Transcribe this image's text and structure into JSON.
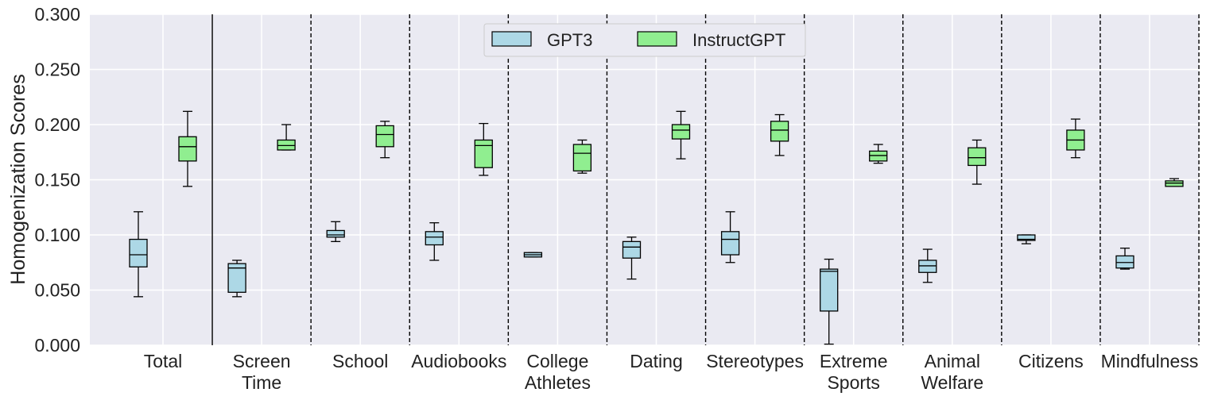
{
  "chart_data": {
    "type": "box",
    "title": "",
    "xlabel": "",
    "ylabel": "Homogenization Scores",
    "ylim": [
      0,
      0.3
    ],
    "yticks": [
      0,
      0.05,
      0.1,
      0.15,
      0.2,
      0.25,
      0.3
    ],
    "ytick_labels": [
      "0.000",
      "0.050",
      "0.100",
      "0.150",
      "0.200",
      "0.250",
      "0.300"
    ],
    "grid": true,
    "legend_position": "top-center",
    "categories": [
      [
        "Total"
      ],
      [
        "Screen",
        "Time"
      ],
      [
        "School"
      ],
      [
        "Audiobooks"
      ],
      [
        "College",
        "Athletes"
      ],
      [
        "Dating"
      ],
      [
        "Stereotypes"
      ],
      [
        "Extreme",
        "Sports"
      ],
      [
        "Animal",
        "Welfare"
      ],
      [
        "Citizens"
      ],
      [
        "Mindfulness"
      ]
    ],
    "series": [
      {
        "name": "GPT3",
        "color": "#add8e6",
        "boxes": [
          {
            "whislo": 0.044,
            "q1": 0.071,
            "med": 0.082,
            "q3": 0.096,
            "whishi": 0.121
          },
          {
            "whislo": 0.044,
            "q1": 0.048,
            "med": 0.07,
            "q3": 0.074,
            "whishi": 0.077
          },
          {
            "whislo": 0.094,
            "q1": 0.098,
            "med": 0.1,
            "q3": 0.104,
            "whishi": 0.112
          },
          {
            "whislo": 0.077,
            "q1": 0.091,
            "med": 0.098,
            "q3": 0.103,
            "whishi": 0.111
          },
          {
            "whislo": 0.08,
            "q1": 0.08,
            "med": 0.082,
            "q3": 0.084,
            "whishi": 0.084
          },
          {
            "whislo": 0.06,
            "q1": 0.079,
            "med": 0.089,
            "q3": 0.094,
            "whishi": 0.098
          },
          {
            "whislo": 0.075,
            "q1": 0.082,
            "med": 0.096,
            "q3": 0.103,
            "whishi": 0.121
          },
          {
            "whislo": 0.001,
            "q1": 0.031,
            "med": 0.067,
            "q3": 0.069,
            "whishi": 0.078
          },
          {
            "whislo": 0.057,
            "q1": 0.066,
            "med": 0.072,
            "q3": 0.077,
            "whishi": 0.087
          },
          {
            "whislo": 0.092,
            "q1": 0.095,
            "med": 0.096,
            "q3": 0.1,
            "whishi": 0.1
          },
          {
            "whislo": 0.069,
            "q1": 0.07,
            "med": 0.075,
            "q3": 0.081,
            "whishi": 0.088
          }
        ]
      },
      {
        "name": "InstructGPT",
        "color": "#90ee90",
        "boxes": [
          {
            "whislo": 0.144,
            "q1": 0.167,
            "med": 0.18,
            "q3": 0.189,
            "whishi": 0.212
          },
          {
            "whislo": 0.177,
            "q1": 0.177,
            "med": 0.181,
            "q3": 0.186,
            "whishi": 0.2
          },
          {
            "whislo": 0.17,
            "q1": 0.18,
            "med": 0.191,
            "q3": 0.199,
            "whishi": 0.203
          },
          {
            "whislo": 0.154,
            "q1": 0.161,
            "med": 0.181,
            "q3": 0.186,
            "whishi": 0.201
          },
          {
            "whislo": 0.156,
            "q1": 0.158,
            "med": 0.174,
            "q3": 0.182,
            "whishi": 0.186
          },
          {
            "whislo": 0.169,
            "q1": 0.187,
            "med": 0.195,
            "q3": 0.2,
            "whishi": 0.212
          },
          {
            "whislo": 0.172,
            "q1": 0.185,
            "med": 0.195,
            "q3": 0.203,
            "whishi": 0.209
          },
          {
            "whislo": 0.165,
            "q1": 0.167,
            "med": 0.172,
            "q3": 0.176,
            "whishi": 0.182
          },
          {
            "whislo": 0.146,
            "q1": 0.163,
            "med": 0.17,
            "q3": 0.179,
            "whishi": 0.186
          },
          {
            "whislo": 0.17,
            "q1": 0.177,
            "med": 0.186,
            "q3": 0.195,
            "whishi": 0.205
          },
          {
            "whislo": 0.144,
            "q1": 0.144,
            "med": 0.147,
            "q3": 0.149,
            "whishi": 0.151
          }
        ]
      }
    ]
  }
}
